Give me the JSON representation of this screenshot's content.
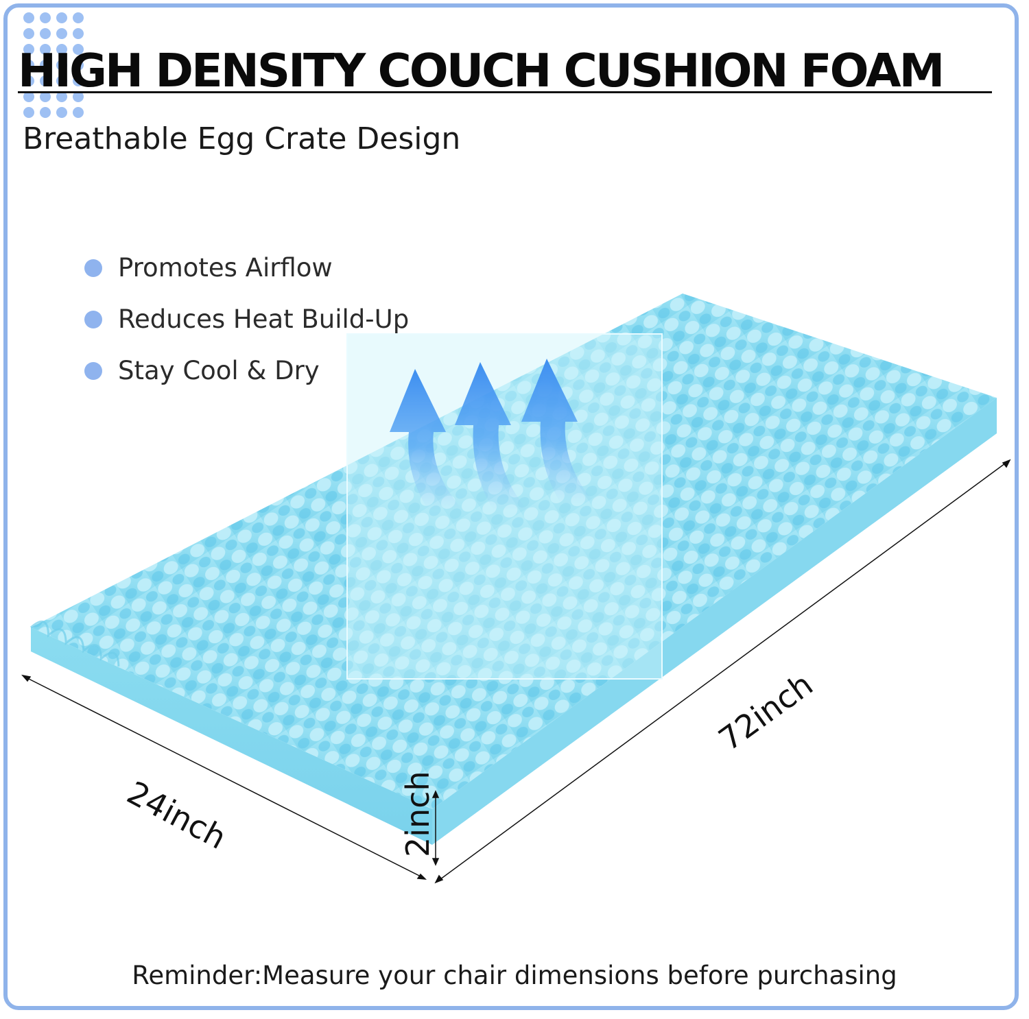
{
  "title": "HIGH DENSITY COUCH CUSHION FOAM",
  "subtitle": "Breathable Egg Crate Design",
  "features": [
    "Promotes Airflow",
    "Reduces Heat Build-Up",
    "Stay Cool & Dry"
  ],
  "dimensions": {
    "width": "24inch",
    "length": "72inch",
    "thickness": "2inch"
  },
  "reminder": "Reminder:Measure your chair dimensions before purchasing",
  "colors": {
    "frame": "#8fb3ea",
    "foam": "#8fdcef",
    "bullet": "#8fb3ee",
    "arrow": "#3d8ef0"
  }
}
